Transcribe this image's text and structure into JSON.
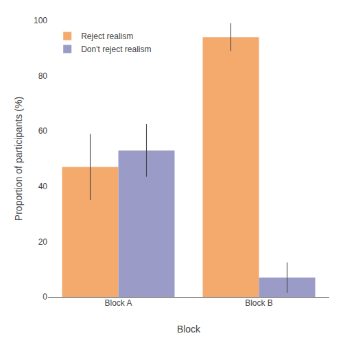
{
  "chart_data": {
    "type": "bar",
    "xlabel": "Block",
    "ylabel": "Proportion of participants (%)",
    "categories": [
      "Block A",
      "Block B"
    ],
    "series": [
      {
        "name": "Reject realism",
        "color": "#F4A96D",
        "values": [
          47,
          94
        ],
        "errors": [
          12,
          5
        ]
      },
      {
        "name": "Don't reject realism",
        "color": "#9B9BC8",
        "values": [
          53,
          7
        ],
        "errors": [
          9.5,
          5.5
        ]
      }
    ],
    "ylim": [
      0,
      100
    ],
    "yticks": [
      0,
      20,
      40,
      60,
      80,
      100
    ],
    "grid": false,
    "legend": "upper left"
  }
}
